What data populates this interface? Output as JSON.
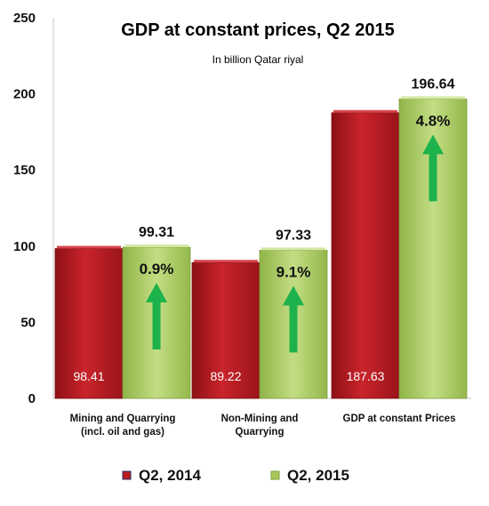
{
  "chart_data": {
    "type": "bar",
    "title": "GDP at constant prices, Q2 2015",
    "subtitle": "In billion Qatar riyal",
    "categories": [
      [
        "Mining and Quarrying",
        "(incl. oil and gas)"
      ],
      [
        "Non-Mining and",
        "Quarrying"
      ],
      [
        "GDP at constant Prices"
      ]
    ],
    "series": [
      {
        "name": "Q2, 2014",
        "values": [
          98.41,
          89.22,
          187.63
        ],
        "labels": [
          "98.41",
          "89.22",
          "187.63"
        ],
        "color": "#b81c22"
      },
      {
        "name": "Q2, 2015",
        "values": [
          99.31,
          97.33,
          196.64
        ],
        "labels": [
          "99.31",
          "97.33",
          "196.64"
        ],
        "color": "#a6c95a"
      }
    ],
    "growth": [
      "0.9%",
      "9.1%",
      "4.8%"
    ],
    "growth_arrow_color": "#1db24b",
    "ylim": [
      0,
      250
    ],
    "yticks": [
      0,
      50,
      100,
      150,
      200,
      250
    ],
    "grid": false,
    "legend_position": "bottom"
  }
}
